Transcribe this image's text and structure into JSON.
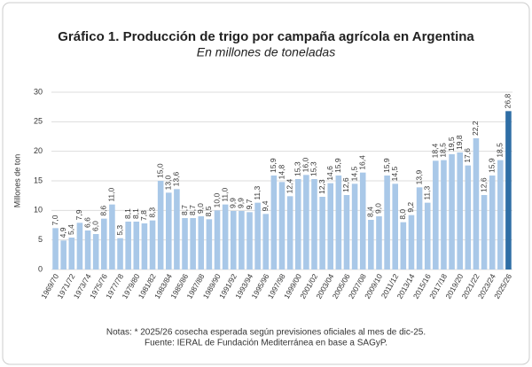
{
  "chart_data": {
    "type": "bar",
    "title": "Gráfico 1. Producción de trigo por campaña agrícola en Argentina",
    "subtitle": "En millones de toneladas",
    "y_label": "Millones de ton",
    "categories": [
      "1969/70",
      null,
      "1971/72",
      null,
      "1973/74",
      null,
      "1975/76",
      null,
      "1977/78",
      null,
      "1979/80",
      null,
      "1981/82",
      null,
      "1983/84",
      null,
      "1985/86",
      null,
      "1987/88",
      null,
      "1989/90",
      null,
      "1991/92",
      null,
      "1993/94",
      null,
      "1995/96",
      null,
      "1997/98",
      null,
      "1999/00",
      null,
      "2001/02",
      null,
      "2003/04",
      null,
      "2005/06",
      null,
      "2007/08",
      null,
      "2009/10",
      null,
      "2011/12",
      null,
      "2013/14",
      null,
      "2015/16",
      null,
      "2017/18",
      null,
      "2019/20",
      null,
      "2021/22",
      null,
      "2023/24",
      null,
      "2025/26"
    ],
    "values": [
      7.0,
      4.9,
      5.4,
      7.9,
      6.6,
      6.0,
      8.6,
      11.0,
      5.3,
      8.1,
      8.1,
      7.8,
      8.3,
      15.0,
      13.0,
      13.6,
      8.7,
      8.7,
      9.0,
      8.5,
      10.0,
      11.0,
      9.9,
      9.9,
      9.7,
      11.3,
      9.4,
      15.9,
      14.8,
      12.4,
      15.3,
      16.0,
      15.3,
      12.3,
      14.6,
      15.9,
      12.6,
      14.5,
      16.4,
      8.4,
      9.0,
      15.9,
      14.5,
      8.0,
      9.2,
      13.9,
      11.3,
      18.4,
      18.5,
      19.5,
      19.8,
      17.6,
      22.2,
      12.6,
      15.9,
      18.5,
      26.8
    ],
    "value_labels": [
      "7,0",
      "4,9",
      "5,4",
      "7,9",
      "6,6",
      "6,0",
      "8,6",
      "11,0",
      "5,3",
      "8,1",
      "8,1",
      "7,8",
      "8,3",
      "15,0",
      "13,0",
      "13,6",
      "8,7",
      "8,7",
      "9,0",
      "8,5",
      "10,0",
      "11,0",
      "9,9",
      "9,9",
      "9,7",
      "11,3",
      "9,4",
      "15,9",
      "14,8",
      "12,4",
      "15,3",
      "16,0",
      "15,3",
      "12,3",
      "14,6",
      "15,9",
      "12,6",
      "14,5",
      "16,4",
      "8,4",
      "9,0",
      "15,9",
      "14,5",
      "8,0",
      "9,2",
      "13,9",
      "11,3",
      "18,4",
      "18,5",
      "19,5",
      "19,8",
      "17,6",
      "22,2",
      "12,6",
      "15,9",
      "18,5",
      "26,8"
    ],
    "color": "#a9c8e8",
    "highlight": {
      "index": 56,
      "color": "#2f6ea5"
    },
    "ylim": [
      0,
      30
    ],
    "yticks": [
      0,
      5,
      10,
      15,
      20,
      25,
      30
    ],
    "grid": true,
    "notes": [
      "Notas: * 2025/26 cosecha esperada según previsiones oficiales al mes de dic-25.",
      "Fuente: IERAL de Fundación Mediterránea en base a SAGyP."
    ]
  }
}
